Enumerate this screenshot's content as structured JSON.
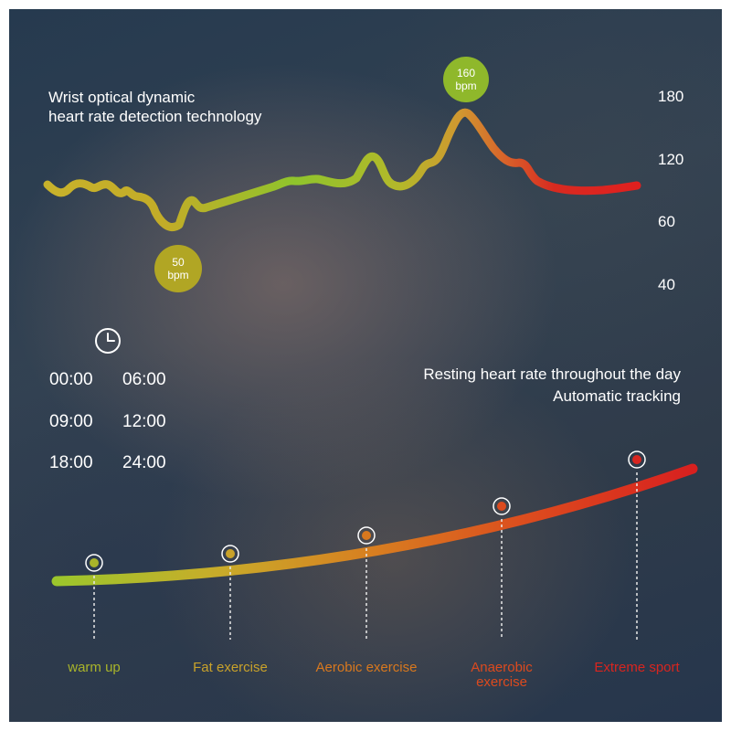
{
  "headline": {
    "line1": "Wrist optical dynamic",
    "line2": "heart rate detection technology"
  },
  "resting": {
    "line1": "Resting heart rate throughout the day",
    "line2": "Automatic tracking"
  },
  "times": [
    "00:00",
    "06:00",
    "09:00",
    "12:00",
    "18:00",
    "24:00"
  ],
  "clock_icon": "clock-icon",
  "colors": {
    "green": "#9cc62b",
    "yellow": "#c9b228",
    "orange": "#d4741f",
    "red": "#d8261f"
  },
  "chart_data": [
    {
      "type": "line",
      "y_ticks": [
        "180",
        "120",
        "60",
        "40"
      ],
      "annotations": [
        {
          "value": "160",
          "unit": "bpm",
          "label": "160\nbpm"
        },
        {
          "value": "50",
          "unit": "bpm",
          "label": "50\nbpm"
        }
      ],
      "title": "",
      "xlabel": "",
      "ylabel": "",
      "grid": false
    },
    {
      "type": "line",
      "categories": [
        "warm up",
        "Fat exercise",
        "Aerobic exercise",
        "Anaerobic exercise",
        "Extreme sport"
      ],
      "zone_colors": [
        "#a9b42a",
        "#c9a22a",
        "#d8781e",
        "#dc4a1e",
        "#d8251f"
      ],
      "title": "",
      "grid": false
    }
  ]
}
